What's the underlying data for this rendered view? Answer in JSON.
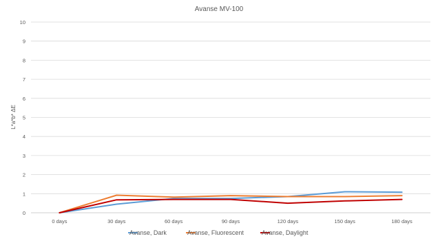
{
  "chart_data": {
    "type": "line",
    "title": "Avanse MV-100",
    "ylabel": "L*a*b* ΔE",
    "xlabel": "",
    "categories": [
      "0 days",
      "30 days",
      "60 days",
      "90 days",
      "120 days",
      "150 days",
      "180 days"
    ],
    "ylim": [
      0,
      10
    ],
    "yticks": [
      0,
      1,
      2,
      3,
      4,
      5,
      6,
      7,
      8,
      9,
      10
    ],
    "grid": true,
    "legend_position": "bottom",
    "series": [
      {
        "name": "Avanse, Dark",
        "color": "#5b9bd5",
        "values": [
          0,
          0.45,
          0.75,
          0.75,
          0.85,
          1.1,
          1.08
        ]
      },
      {
        "name": "Avanse, Fluorescent",
        "color": "#ed7d31",
        "values": [
          0,
          0.92,
          0.82,
          0.9,
          0.85,
          0.85,
          0.9
        ]
      },
      {
        "name": "Avanse, Daylight",
        "color": "#c00000",
        "values": [
          0,
          0.68,
          0.7,
          0.7,
          0.5,
          0.62,
          0.7
        ]
      }
    ]
  }
}
